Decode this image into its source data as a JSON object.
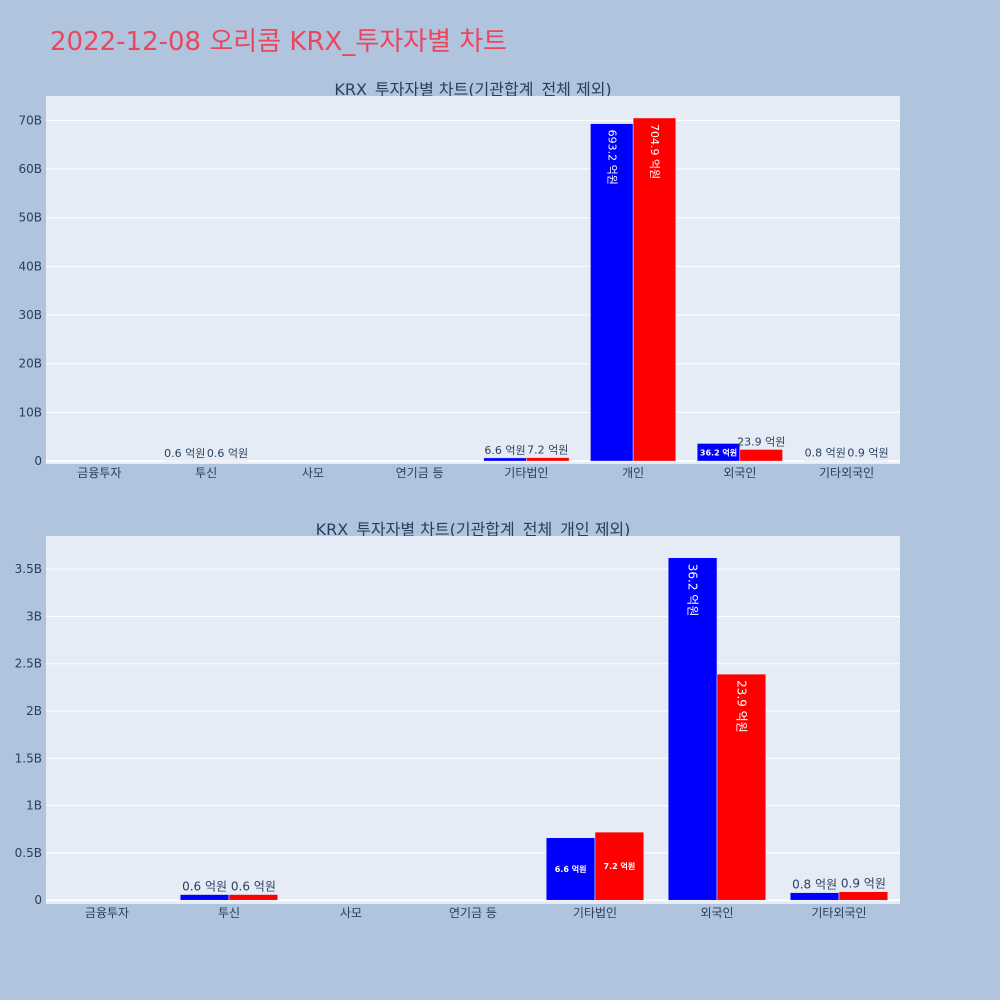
{
  "page": {
    "title": "2022-12-08 오리콤 KRX_투자자별 차트",
    "background": "#b0c4de",
    "plot_background": "#e5ecf6",
    "title_color": "#e8475f"
  },
  "chart_data": [
    {
      "type": "bar",
      "title": "KRX_투자자별 차트(기관합계_전체 제외)",
      "categories": [
        "금융투자",
        "투신",
        "사모",
        "연기금 등",
        "기타법인",
        "개인",
        "외국인",
        "기타외국인"
      ],
      "series": [
        {
          "color": "#0000ff",
          "values": [
            0,
            0.06,
            0,
            0,
            0.66,
            69.32,
            3.62,
            0.08
          ],
          "labels": [
            "",
            "0.6 억원",
            "",
            "",
            "6.6 억원",
            "693.2 억원",
            "36.2 억원",
            "0.8 억원"
          ]
        },
        {
          "color": "#ff0000",
          "values": [
            0,
            0.06,
            0,
            0,
            0.72,
            70.49,
            2.39,
            0.09
          ],
          "labels": [
            "",
            "0.6 억원",
            "",
            "",
            "7.2 억원",
            "704.9 억원",
            "23.9 억원",
            "0.9 억원"
          ]
        }
      ],
      "ylim": [
        -0.6,
        75
      ],
      "yticks": [
        0,
        10,
        20,
        30,
        40,
        50,
        60,
        70
      ],
      "yticklabels": [
        "0",
        "10B",
        "20B",
        "30B",
        "40B",
        "50B",
        "60B",
        "70B"
      ],
      "grid": true
    },
    {
      "type": "bar",
      "title": "KRX_투자자별 차트(기관합계_전체_개인 제외)",
      "categories": [
        "금융투자",
        "투신",
        "사모",
        "연기금 등",
        "기타법인",
        "외국인",
        "기타외국인"
      ],
      "series": [
        {
          "color": "#0000ff",
          "values": [
            0,
            0.06,
            0,
            0,
            0.66,
            3.62,
            0.08
          ],
          "labels": [
            "",
            "0.6 억원",
            "",
            "",
            "6.6 억원",
            "36.2 억원",
            "0.8 억원"
          ]
        },
        {
          "color": "#ff0000",
          "values": [
            0,
            0.06,
            0,
            0,
            0.72,
            2.39,
            0.09
          ],
          "labels": [
            "",
            "0.6 억원",
            "",
            "",
            "7.2 억원",
            "23.9 억원",
            "0.9 억원"
          ]
        }
      ],
      "ylim": [
        -0.04,
        3.85
      ],
      "yticks": [
        0,
        0.5,
        1,
        1.5,
        2,
        2.5,
        3,
        3.5
      ],
      "yticklabels": [
        "0",
        "0.5B",
        "1B",
        "1.5B",
        "2B",
        "2.5B",
        "3B",
        "3.5B"
      ],
      "grid": true
    }
  ]
}
